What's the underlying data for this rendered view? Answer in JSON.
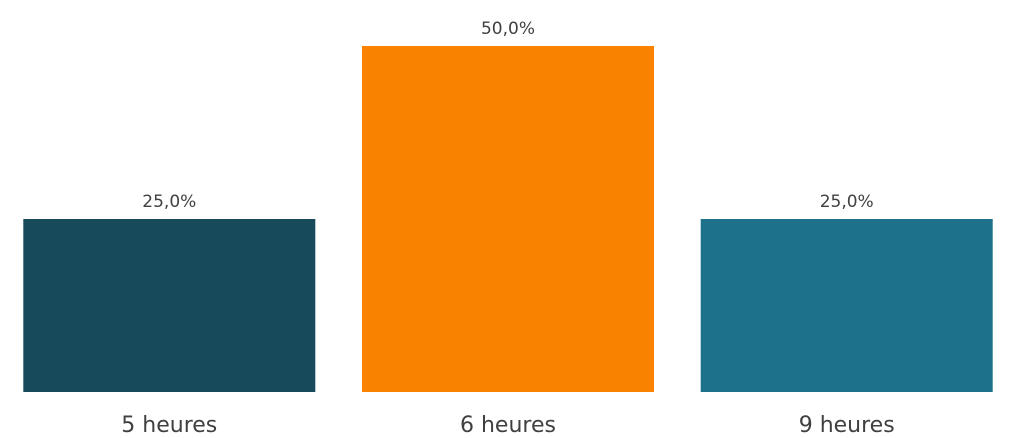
{
  "chart_data": {
    "type": "bar",
    "title": "",
    "xlabel": "",
    "ylabel": "",
    "categories": [
      "5 heures",
      "6 heures",
      "9 heures"
    ],
    "values": [
      25.0,
      50.0,
      25.0
    ],
    "data_labels": [
      "25,0%",
      "50,0%",
      "25,0%"
    ],
    "colors": [
      "#174b5c",
      "#f98200",
      "#1d718a"
    ],
    "ylim": [
      0,
      50
    ],
    "grid": false,
    "legend": "none"
  }
}
